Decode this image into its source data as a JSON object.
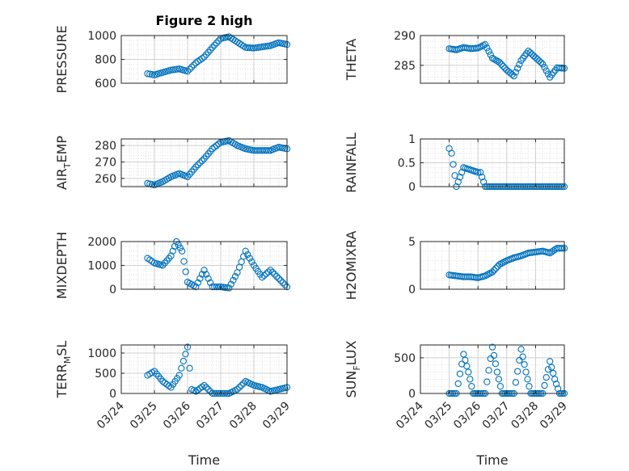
{
  "figure": {
    "title": "Figure 2 high",
    "marker_color": "#0072BD",
    "xlabel": "Time",
    "xtick_labels": [
      "03/24",
      "03/25",
      "03/26",
      "03/27",
      "03/28",
      "03/29"
    ]
  },
  "chart_data": [
    {
      "type": "scatter",
      "ylabel": "PRESSURE",
      "title": "Figure 2 high",
      "ylim": [
        600,
        1000
      ],
      "yticks": [
        600,
        800,
        1000
      ],
      "xlim": [
        "03/24",
        "03/29"
      ],
      "grid": true,
      "x": [
        "03/24 19:00",
        "03/25 00:00",
        "03/25 06:00",
        "03/25 12:00",
        "03/25 18:00",
        "03/26 00:00",
        "03/26 06:00",
        "03/26 12:00",
        "03/26 18:00",
        "03/27 00:00",
        "03/27 06:00",
        "03/27 12:00",
        "03/27 18:00",
        "03/28 00:00",
        "03/28 12:00",
        "03/28 18:00",
        "03/29 00:00"
      ],
      "y": [
        680,
        670,
        690,
        710,
        720,
        700,
        770,
        820,
        900,
        975,
        990,
        945,
        900,
        895,
        915,
        940,
        925
      ]
    },
    {
      "type": "scatter",
      "ylabel": "THETA",
      "ylim": [
        282,
        290
      ],
      "yticks": [
        285,
        290
      ],
      "xlim": [
        "03/24",
        "03/29"
      ],
      "grid": true,
      "x": [
        "03/25 00:00",
        "03/25 06:00",
        "03/25 12:00",
        "03/25 18:00",
        "03/26 00:00",
        "03/26 06:00",
        "03/26 12:00",
        "03/26 18:00",
        "03/27 00:00",
        "03/27 06:00",
        "03/27 12:00",
        "03/27 18:00",
        "03/28 00:00",
        "03/28 06:00",
        "03/28 12:00",
        "03/28 18:00",
        "03/29 00:00"
      ],
      "y": [
        287.8,
        287.6,
        288.0,
        287.8,
        287.9,
        288.5,
        286.2,
        285.5,
        284.2,
        283.2,
        285.8,
        287.4,
        286.3,
        285.2,
        283.0,
        284.6,
        284.5
      ]
    },
    {
      "type": "scatter",
      "ylabel": "AIR_TEMP",
      "ylim": [
        255,
        284
      ],
      "yticks": [
        260,
        270,
        280
      ],
      "xlim": [
        "03/24",
        "03/29"
      ],
      "grid": true,
      "x": [
        "03/24 19:00",
        "03/25 00:00",
        "03/25 06:00",
        "03/25 12:00",
        "03/25 18:00",
        "03/26 00:00",
        "03/26 06:00",
        "03/26 12:00",
        "03/26 18:00",
        "03/27 00:00",
        "03/27 06:00",
        "03/27 12:00",
        "03/27 18:00",
        "03/28 00:00",
        "03/28 12:00",
        "03/28 18:00",
        "03/29 00:00"
      ],
      "y": [
        257,
        256,
        258,
        261,
        263,
        261,
        267,
        272,
        278,
        282,
        283,
        280,
        278,
        277,
        277,
        279,
        278
      ]
    },
    {
      "type": "scatter",
      "ylabel": "RAINFALL",
      "ylim": [
        0,
        1
      ],
      "yticks": [
        0,
        0.5,
        1
      ],
      "xlim": [
        "03/24",
        "03/29"
      ],
      "grid": true,
      "x": [
        "03/25 00:00",
        "03/25 02:00",
        "03/25 06:00",
        "03/25 09:00",
        "03/25 12:00",
        "03/26 00:00",
        "03/26 02:00",
        "03/26 06:00",
        "03/26 12:00",
        "03/27 00:00",
        "03/27 12:00",
        "03/28 00:00",
        "03/28 12:00",
        "03/29 00:00"
      ],
      "y": [
        0.8,
        0.7,
        0.0,
        0.2,
        0.4,
        0.3,
        0.3,
        0.0,
        0.0,
        0.0,
        0.0,
        0.0,
        0.0,
        0.0
      ]
    },
    {
      "type": "scatter",
      "ylabel": "MIXDEPTH",
      "ylim": [
        0,
        2000
      ],
      "yticks": [
        0,
        1000,
        2000
      ],
      "xlim": [
        "03/24",
        "03/29"
      ],
      "grid": true,
      "x": [
        "03/24 19:00",
        "03/25 00:00",
        "03/25 06:00",
        "03/25 12:00",
        "03/25 16:00",
        "03/25 20:00",
        "03/26 00:00",
        "03/26 06:00",
        "03/26 12:00",
        "03/26 18:00",
        "03/27 00:00",
        "03/27 06:00",
        "03/27 12:00",
        "03/27 18:00",
        "03/28 00:00",
        "03/28 06:00",
        "03/28 12:00",
        "03/29 00:00"
      ],
      "y": [
        1300,
        1100,
        1000,
        1400,
        2000,
        1600,
        300,
        100,
        800,
        100,
        100,
        50,
        700,
        1600,
        1000,
        500,
        800,
        100
      ]
    },
    {
      "type": "scatter",
      "ylabel": "H2OMIXRA",
      "ylim": [
        0,
        5
      ],
      "yticks": [
        0,
        5
      ],
      "xlim": [
        "03/24",
        "03/29"
      ],
      "grid": true,
      "x": [
        "03/25 00:00",
        "03/25 06:00",
        "03/25 12:00",
        "03/25 18:00",
        "03/26 00:00",
        "03/26 06:00",
        "03/26 12:00",
        "03/26 18:00",
        "03/27 00:00",
        "03/27 06:00",
        "03/27 12:00",
        "03/27 18:00",
        "03/28 00:00",
        "03/28 06:00",
        "03/28 12:00",
        "03/28 18:00",
        "03/29 00:00"
      ],
      "y": [
        1.5,
        1.4,
        1.3,
        1.3,
        1.2,
        1.4,
        1.8,
        2.6,
        3.0,
        3.3,
        3.5,
        3.8,
        3.9,
        4.0,
        3.8,
        4.3,
        4.3
      ]
    },
    {
      "type": "scatter",
      "ylabel": "TERR_MSL",
      "ylim": [
        0,
        1200
      ],
      "yticks": [
        0,
        500,
        1000
      ],
      "xlim": [
        "03/24",
        "03/29"
      ],
      "grid": true,
      "x": [
        "03/24 19:00",
        "03/25 00:00",
        "03/25 06:00",
        "03/25 12:00",
        "03/25 18:00",
        "03/26 00:00",
        "03/26 03:00",
        "03/26 06:00",
        "03/26 12:00",
        "03/26 18:00",
        "03/27 00:00",
        "03/27 06:00",
        "03/27 12:00",
        "03/27 18:00",
        "03/28 00:00",
        "03/28 06:00",
        "03/28 12:00",
        "03/29 00:00"
      ],
      "y": [
        450,
        550,
        300,
        150,
        450,
        1150,
        100,
        50,
        200,
        0,
        0,
        0,
        100,
        300,
        200,
        150,
        50,
        150
      ]
    },
    {
      "type": "scatter",
      "ylabel": "SUN_FLUX",
      "ylim": [
        0,
        680
      ],
      "yticks": [
        0,
        500
      ],
      "xlim": [
        "03/24",
        "03/29"
      ],
      "grid": true,
      "x": [
        "03/25 00:00",
        "03/25 06:00",
        "03/25 12:00",
        "03/25 16:00",
        "03/25 20:00",
        "03/26 00:00",
        "03/26 06:00",
        "03/26 12:00",
        "03/26 16:00",
        "03/26 20:00",
        "03/27 00:00",
        "03/27 06:00",
        "03/27 12:00",
        "03/27 16:00",
        "03/27 20:00",
        "03/28 00:00",
        "03/28 06:00",
        "03/28 12:00",
        "03/28 16:00",
        "03/28 20:00",
        "03/29 00:00"
      ],
      "y": [
        0,
        0,
        550,
        300,
        0,
        0,
        0,
        650,
        300,
        0,
        0,
        0,
        620,
        300,
        0,
        0,
        0,
        450,
        200,
        0,
        0
      ]
    }
  ]
}
